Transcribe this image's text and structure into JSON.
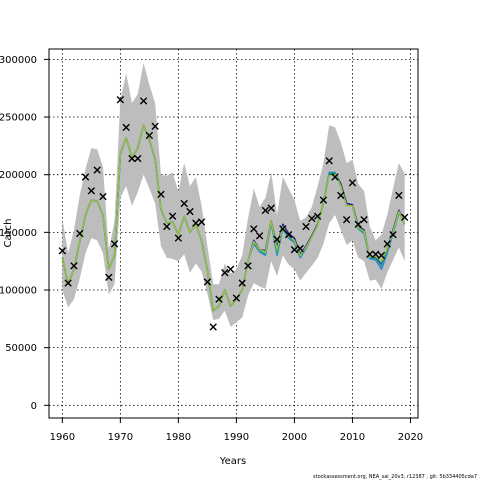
{
  "chart_data": {
    "type": "line",
    "xlabel": "Years",
    "ylabel": "Catch",
    "xlim": [
      1957.7,
      2021.3
    ],
    "ylim": [
      -11000,
      309000
    ],
    "x_ticks": [
      1960,
      1970,
      1980,
      1990,
      2000,
      2010,
      2020
    ],
    "y_ticks": [
      0,
      50000,
      100000,
      150000,
      200000,
      250000,
      300000
    ],
    "grid": true,
    "footer": "stockassessment.org, NEA_sai_20v3, r12387 , git: 5b334405cda7",
    "band": {
      "color": "#bdbdbd",
      "x": [
        1960,
        1961,
        1962,
        1963,
        1964,
        1965,
        1966,
        1967,
        1968,
        1969,
        1970,
        1971,
        1972,
        1973,
        1974,
        1975,
        1976,
        1977,
        1978,
        1979,
        1980,
        1981,
        1982,
        1983,
        1984,
        1985,
        1986,
        1987,
        1988,
        1989,
        1990,
        1991,
        1992,
        1993,
        1994,
        1995,
        1996,
        1997,
        1998,
        1999,
        2000,
        2001,
        2002,
        2003,
        2004,
        2005,
        2006,
        2007,
        2008,
        2009,
        2010,
        2011,
        2012,
        2013,
        2014,
        2015,
        2016,
        2017,
        2018,
        2019
      ],
      "lower": [
        100000,
        85000,
        92000,
        110000,
        132000,
        145000,
        143000,
        132000,
        96000,
        105000,
        180000,
        190000,
        173000,
        185000,
        200000,
        188000,
        175000,
        138000,
        128000,
        127000,
        125000,
        131000,
        115000,
        123000,
        116000,
        97000,
        74000,
        75000,
        82000,
        68000,
        72000,
        76000,
        95000,
        106000,
        103000,
        101000,
        125000,
        112000,
        130000,
        122000,
        118000,
        108000,
        115000,
        121000,
        128000,
        140000,
        158000,
        165000,
        152000,
        139000,
        143000,
        128000,
        125000,
        108000,
        109000,
        101000,
        115000,
        126000,
        137000,
        125000
      ],
      "upper": [
        162000,
        132000,
        152000,
        182000,
        205000,
        223000,
        222000,
        207000,
        135000,
        160000,
        265000,
        288000,
        262000,
        270000,
        297000,
        278000,
        262000,
        200000,
        199000,
        202000,
        185000,
        210000,
        190000,
        198000,
        173000,
        138000,
        105000,
        105000,
        123000,
        114000,
        118000,
        130000,
        162000,
        188000,
        172000,
        180000,
        202000,
        165000,
        198000,
        188000,
        178000,
        160000,
        163000,
        172000,
        190000,
        210000,
        243000,
        241000,
        228000,
        210000,
        213000,
        192000,
        186000,
        155000,
        143000,
        148000,
        165000,
        188000,
        210000,
        201000
      ]
    },
    "series": [
      {
        "color": "#2b1d8c",
        "width": 1.6,
        "x": [
          1960,
          1961,
          1962,
          1963,
          1964,
          1965,
          1966,
          1967,
          1968,
          1969,
          1970,
          1971,
          1972,
          1973,
          1974,
          1975,
          1976,
          1977,
          1978,
          1979,
          1980,
          1981,
          1982,
          1983,
          1984,
          1985,
          1986,
          1987,
          1988,
          1989,
          1990,
          1991,
          1992,
          1993,
          1994,
          1995,
          1996,
          1997,
          1998,
          1999,
          2000,
          2001,
          2002,
          2003,
          2004,
          2005,
          2006,
          2007,
          2008,
          2009,
          2010,
          2011,
          2012,
          2013,
          2014,
          2015,
          2016,
          2017,
          2018,
          2019
        ],
        "values": [
          128000,
          105000,
          118000,
          142000,
          165000,
          178000,
          177000,
          165000,
          118000,
          130000,
          218000,
          232000,
          215000,
          223000,
          243000,
          230000,
          213000,
          170000,
          158000,
          159000,
          148000,
          164000,
          150000,
          157000,
          143000,
          117000,
          82000,
          86000,
          100000,
          86000,
          92000,
          100000,
          125000,
          143000,
          135000,
          134000,
          160000,
          137000,
          157000,
          149000,
          145000,
          131000,
          138000,
          147000,
          157000,
          175000,
          200000,
          201000,
          192000,
          175000,
          174000,
          155000,
          152000,
          128000,
          128000,
          122000,
          136000,
          152000,
          169000,
          157000
        ]
      },
      {
        "color": "#2f7fd6",
        "width": 1.4,
        "x": [
          1960,
          1961,
          1962,
          1963,
          1964,
          1965,
          1966,
          1967,
          1968,
          1969,
          1970,
          1971,
          1972,
          1973,
          1974,
          1975,
          1976,
          1977,
          1978,
          1979,
          1980,
          1981,
          1982,
          1983,
          1984,
          1985,
          1986,
          1987,
          1988,
          1989,
          1990,
          1991,
          1992,
          1993,
          1994,
          1995,
          1996,
          1997,
          1998,
          1999,
          2000,
          2001,
          2002,
          2003,
          2004,
          2005,
          2006,
          2007,
          2008,
          2009,
          2010,
          2011,
          2012,
          2013,
          2014,
          2015,
          2016,
          2017,
          2018,
          2019
        ],
        "values": [
          128000,
          105000,
          118000,
          142000,
          165000,
          178000,
          177000,
          165000,
          118000,
          130000,
          218000,
          232000,
          215000,
          223000,
          243000,
          230000,
          213000,
          170000,
          158000,
          159000,
          148000,
          164000,
          150000,
          157000,
          143000,
          117000,
          82000,
          86000,
          100000,
          86000,
          92000,
          100000,
          125000,
          140000,
          133000,
          130000,
          158000,
          130000,
          153000,
          145000,
          141000,
          128000,
          136000,
          146000,
          156000,
          176000,
          202000,
          202000,
          190000,
          173000,
          173000,
          153000,
          149000,
          127000,
          126000,
          118000,
          132000,
          149000,
          167000,
          158000
        ]
      },
      {
        "color": "#1aa68c",
        "width": 1.4,
        "x": [
          1960,
          1961,
          1962,
          1963,
          1964,
          1965,
          1966,
          1967,
          1968,
          1969,
          1970,
          1971,
          1972,
          1973,
          1974,
          1975,
          1976,
          1977,
          1978,
          1979,
          1980,
          1981,
          1982,
          1983,
          1984,
          1985,
          1986,
          1987,
          1988,
          1989,
          1990,
          1991,
          1992,
          1993,
          1994,
          1995,
          1996,
          1997,
          1998,
          1999,
          2000,
          2001,
          2002,
          2003,
          2004,
          2005,
          2006,
          2007,
          2008,
          2009,
          2010,
          2011,
          2012,
          2013,
          2014,
          2015,
          2016,
          2017,
          2018,
          2019
        ],
        "values": [
          128000,
          105000,
          118000,
          142000,
          165000,
          178000,
          177000,
          165000,
          118000,
          130000,
          218000,
          232000,
          215000,
          223000,
          243000,
          230000,
          213000,
          170000,
          158000,
          159000,
          148000,
          164000,
          150000,
          157000,
          143000,
          117000,
          82000,
          86000,
          100000,
          86000,
          92000,
          100000,
          125000,
          141000,
          134000,
          131000,
          159000,
          131000,
          154000,
          146000,
          142000,
          129000,
          137000,
          146000,
          156000,
          176000,
          201000,
          202000,
          190000,
          173000,
          173000,
          153000,
          150000,
          128000,
          127000,
          121000,
          134000,
          150000,
          167000,
          158000
        ]
      },
      {
        "color": "#9bc23b",
        "width": 1.4,
        "x": [
          1960,
          1961,
          1962,
          1963,
          1964,
          1965,
          1966,
          1967,
          1968,
          1969,
          1970,
          1971,
          1972,
          1973,
          1974,
          1975,
          1976,
          1977,
          1978,
          1979,
          1980,
          1981,
          1982,
          1983,
          1984,
          1985,
          1986,
          1987,
          1988,
          1989,
          1990,
          1991,
          1992,
          1993,
          1994,
          1995,
          1996,
          1997,
          1998,
          1999,
          2000,
          2001,
          2002,
          2003,
          2004,
          2005,
          2006,
          2007,
          2008,
          2009,
          2010,
          2011,
          2012,
          2013,
          2014,
          2015,
          2016,
          2017,
          2018,
          2019
        ],
        "values": [
          128000,
          105000,
          118000,
          142000,
          165000,
          178000,
          177000,
          165000,
          118000,
          130000,
          218000,
          232000,
          215000,
          223000,
          243000,
          230000,
          213000,
          170000,
          158000,
          159000,
          148000,
          164000,
          150000,
          157000,
          143000,
          117000,
          82000,
          86000,
          100000,
          86000,
          92000,
          100000,
          125000,
          142000,
          135000,
          133000,
          160000,
          135000,
          155000,
          147000,
          143000,
          130000,
          137000,
          146000,
          156000,
          175000,
          199000,
          200000,
          190000,
          173000,
          173000,
          154000,
          151000,
          129000,
          129000,
          125000,
          136000,
          151000,
          168000,
          157000
        ]
      }
    ],
    "observed": {
      "marker": "x",
      "x": [
        1960,
        1961,
        1962,
        1963,
        1964,
        1965,
        1966,
        1967,
        1968,
        1969,
        1970,
        1971,
        1972,
        1973,
        1974,
        1975,
        1976,
        1977,
        1978,
        1979,
        1980,
        1981,
        1982,
        1983,
        1984,
        1985,
        1986,
        1987,
        1988,
        1989,
        1990,
        1991,
        1992,
        1993,
        1994,
        1995,
        1996,
        1997,
        1998,
        1999,
        2000,
        2001,
        2002,
        2003,
        2004,
        2005,
        2006,
        2007,
        2008,
        2009,
        2010,
        2011,
        2012,
        2013,
        2014,
        2015,
        2016,
        2017,
        2018,
        2019
      ],
      "values": [
        134000,
        106000,
        121000,
        149000,
        198000,
        186000,
        204000,
        181000,
        111000,
        140000,
        265000,
        241000,
        214000,
        214000,
        264000,
        234000,
        242000,
        183000,
        155000,
        164000,
        145000,
        175000,
        168000,
        158000,
        159000,
        107000,
        68000,
        92000,
        115000,
        118000,
        93000,
        106000,
        121000,
        153000,
        147000,
        169000,
        171000,
        144000,
        153000,
        148000,
        135000,
        136000,
        155000,
        162000,
        164000,
        178000,
        212000,
        198000,
        182000,
        161000,
        193000,
        157000,
        161000,
        131000,
        131000,
        130000,
        140000,
        148000,
        182000,
        163000
      ]
    }
  }
}
